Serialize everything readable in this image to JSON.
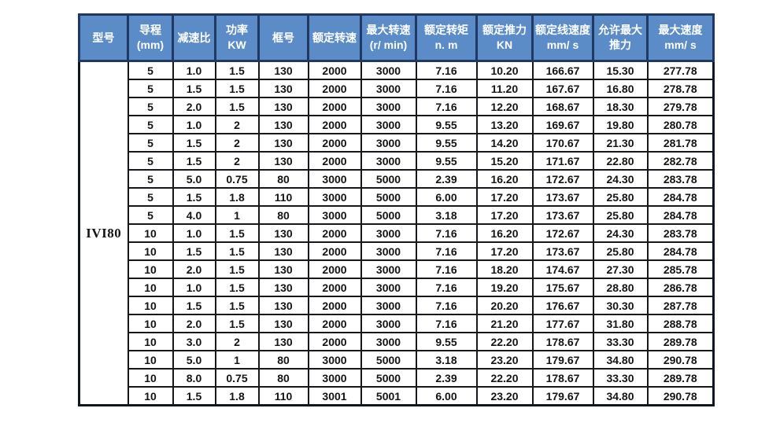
{
  "colors": {
    "header_bg": "#5b8cc8",
    "header_text": "#ffffff",
    "header_border": "#1f3864",
    "body_border": "#15181d",
    "body_text": "#141414",
    "body_bg": "#ffffff"
  },
  "chart_data": {
    "type": "table",
    "title": "",
    "model": "IVI80",
    "columns": [
      "型号",
      "导程 (mm)",
      "减速比",
      "功率 KW",
      "框号",
      "额定转速",
      "最大转速 (r/ min)",
      "额定转矩 n. m",
      "额定推力 KN",
      "额定线速度mm/ s",
      "允许最大推力",
      "最大速度 mm/ s"
    ],
    "rows": [
      [
        "5",
        "1.0",
        "1.5",
        "130",
        "2000",
        "3000",
        "7.16",
        "10.20",
        "166.67",
        "15.30",
        "277.78"
      ],
      [
        "5",
        "1.5",
        "1.5",
        "130",
        "2000",
        "3000",
        "7.16",
        "11.20",
        "167.67",
        "16.80",
        "278.78"
      ],
      [
        "5",
        "2.0",
        "1.5",
        "130",
        "2000",
        "3000",
        "7.16",
        "12.20",
        "168.67",
        "18.30",
        "279.78"
      ],
      [
        "5",
        "1.0",
        "2",
        "130",
        "2000",
        "3000",
        "9.55",
        "13.20",
        "169.67",
        "19.80",
        "280.78"
      ],
      [
        "5",
        "1.5",
        "2",
        "130",
        "2000",
        "3000",
        "9.55",
        "14.20",
        "170.67",
        "21.30",
        "281.78"
      ],
      [
        "5",
        "1.5",
        "2",
        "130",
        "2000",
        "3000",
        "9.55",
        "15.20",
        "171.67",
        "22.80",
        "282.78"
      ],
      [
        "5",
        "5.0",
        "0.75",
        "80",
        "3000",
        "5000",
        "2.39",
        "16.20",
        "172.67",
        "24.30",
        "283.78"
      ],
      [
        "5",
        "1.5",
        "1.8",
        "110",
        "3000",
        "5000",
        "6.00",
        "17.20",
        "173.67",
        "25.80",
        "284.78"
      ],
      [
        "5",
        "4.0",
        "1",
        "80",
        "3000",
        "5000",
        "3.18",
        "17.20",
        "173.67",
        "25.80",
        "284.78"
      ],
      [
        "10",
        "1.0",
        "1.5",
        "130",
        "2000",
        "3000",
        "7.16",
        "16.20",
        "172.67",
        "24.30",
        "283.78"
      ],
      [
        "10",
        "1.5",
        "1.5",
        "130",
        "2000",
        "3000",
        "7.16",
        "17.20",
        "173.67",
        "25.80",
        "284.78"
      ],
      [
        "10",
        "2.0",
        "1.5",
        "130",
        "2000",
        "3000",
        "7.16",
        "18.20",
        "174.67",
        "27.30",
        "285.78"
      ],
      [
        "10",
        "1.0",
        "1.5",
        "130",
        "2000",
        "3000",
        "7.16",
        "19.20",
        "175.67",
        "28.80",
        "286.78"
      ],
      [
        "10",
        "1.5",
        "1.5",
        "130",
        "2000",
        "3000",
        "7.16",
        "20.20",
        "176.67",
        "30.30",
        "287.78"
      ],
      [
        "10",
        "2.0",
        "1.5",
        "130",
        "2000",
        "3000",
        "7.16",
        "21.20",
        "177.67",
        "31.80",
        "288.78"
      ],
      [
        "10",
        "3.0",
        "2",
        "130",
        "2000",
        "3000",
        "9.55",
        "22.20",
        "178.67",
        "33.30",
        "289.78"
      ],
      [
        "10",
        "5.0",
        "1",
        "80",
        "3000",
        "5000",
        "3.18",
        "23.20",
        "179.67",
        "34.80",
        "290.78"
      ],
      [
        "10",
        "8.0",
        "0.75",
        "80",
        "3000",
        "5000",
        "2.39",
        "22.20",
        "178.67",
        "33.30",
        "289.78"
      ],
      [
        "10",
        "1.5",
        "1.8",
        "110",
        "3001",
        "5001",
        "6.00",
        "23.20",
        "179.67",
        "34.80",
        "290.78"
      ]
    ]
  }
}
